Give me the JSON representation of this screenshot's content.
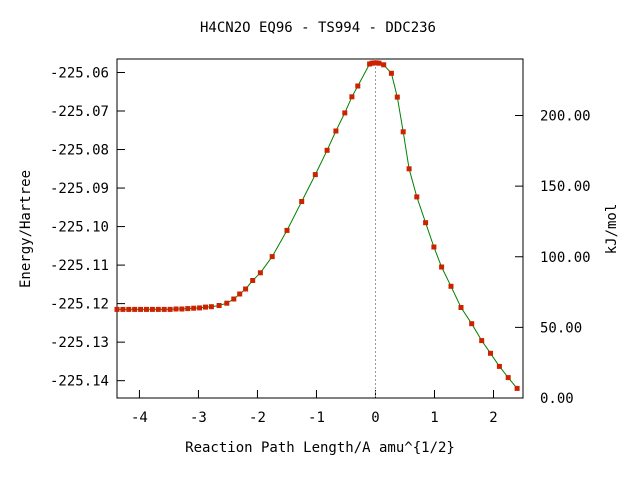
{
  "chart_data": {
    "type": "line",
    "title": "H4CN2O   EQ96 - TS994 - DDC236",
    "xlabel": "Reaction Path Length/A amu^{1/2}",
    "ylabel": "Energy/Hartree",
    "y2label": "kJ/mol",
    "xlim": [
      -4.38,
      2.5
    ],
    "ylim": [
      -225.1445,
      -225.0565
    ],
    "y2lim": [
      0,
      240
    ],
    "x_ticks": [
      "-4",
      "-3",
      "-2",
      "-1",
      "0",
      "1",
      "2"
    ],
    "x_tick_values": [
      -4,
      -3,
      -2,
      -1,
      0,
      1,
      2
    ],
    "y_ticks": [
      "-225.06",
      "-225.07",
      "-225.08",
      "-225.09",
      "-225.10",
      "-225.11",
      "-225.12",
      "-225.13",
      "-225.14"
    ],
    "y_tick_values": [
      -225.06,
      -225.07,
      -225.08,
      -225.09,
      -225.1,
      -225.11,
      -225.12,
      -225.13,
      -225.14
    ],
    "y2_ticks": [
      "0.00",
      "50.00",
      "100.00",
      "150.00",
      "200.00"
    ],
    "y2_tick_values": [
      0,
      50,
      100,
      150,
      200
    ],
    "ts_x": 0.0,
    "grid": false,
    "series": [
      {
        "color": "#008000",
        "marker_color": "#cc2200",
        "x": [
          -4.38,
          -4.28,
          -4.18,
          -4.08,
          -3.98,
          -3.88,
          -3.78,
          -3.68,
          -3.58,
          -3.48,
          -3.38,
          -3.28,
          -3.18,
          -3.08,
          -2.98,
          -2.88,
          -2.78,
          -2.65,
          -2.52,
          -2.4,
          -2.3,
          -2.2,
          -2.08,
          -1.95,
          -1.75,
          -1.5,
          -1.25,
          -1.02,
          -0.82,
          -0.67,
          -0.52,
          -0.4,
          -0.3,
          -0.1,
          -0.06,
          -0.02,
          0.02,
          0.06,
          0.14,
          0.27,
          0.37,
          0.47,
          0.57,
          0.7,
          0.85,
          0.99,
          1.12,
          1.28,
          1.45,
          1.63,
          1.8,
          1.95,
          2.1,
          2.25,
          2.4
        ],
        "y": [
          -225.1215,
          -225.1215,
          -225.1215,
          -225.1215,
          -225.1215,
          -225.1215,
          -225.1215,
          -225.1215,
          -225.1215,
          -225.1215,
          -225.1214,
          -225.1214,
          -225.1213,
          -225.1212,
          -225.1211,
          -225.1209,
          -225.1208,
          -225.1205,
          -225.1199,
          -225.1188,
          -225.1175,
          -225.1162,
          -225.114,
          -225.112,
          -225.1078,
          -225.101,
          -225.0935,
          -225.0865,
          -225.0802,
          -225.0752,
          -225.0705,
          -225.0663,
          -225.0635,
          -225.0578,
          -225.0576,
          -225.0575,
          -225.0575,
          -225.0576,
          -225.058,
          -225.0602,
          -225.0664,
          -225.0754,
          -225.085,
          -225.0923,
          -225.099,
          -225.1053,
          -225.1105,
          -225.1155,
          -225.121,
          -225.1252,
          -225.1296,
          -225.1329,
          -225.1363,
          -225.1392,
          -225.142
        ]
      }
    ]
  }
}
